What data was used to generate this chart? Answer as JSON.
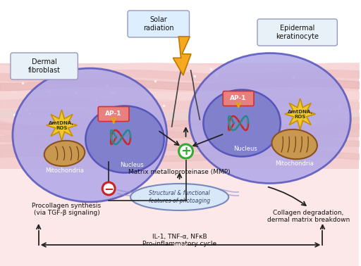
{
  "bg_color": "#ffffff",
  "cell_fill": "#b0a8e8",
  "cell_edge": "#5555bb",
  "nucleus_fill": "#8080cc",
  "nucleus_edge": "#5555bb",
  "skin_base": "#f2c8c8",
  "skin_stripe": "#e8aaaa",
  "skin_light": "#fae0e0",
  "star_fill": "#f0c830",
  "star_edge": "#c89000",
  "mito_fill": "#c89850",
  "mito_edge": "#8a5020",
  "ap1_fill": "#e88080",
  "ap1_edge": "#cc3333",
  "label_box_fill": "#e8f0f8",
  "label_box_edge": "#9999bb",
  "solar_box_fill": "#ddeeff",
  "solar_box_edge": "#9999bb",
  "struct_fill": "#d8e8f8",
  "struct_edge": "#7788bb",
  "arrow_color": "#222222",
  "green_color": "#33aa33",
  "red_color": "#cc2222",
  "dna_red": "#cc2222",
  "dna_teal": "#228888",
  "title_left": "Dermal\nfibroblast",
  "title_right": "Epidermal\nkeratinocyte",
  "label_solar": "Solar\nradiation",
  "label_nucleus": "Nucleus",
  "label_mito": "Mitochondria",
  "label_delta": "ΔmtDNA,\nROS",
  "label_mmp": "Matrix metalloproteinase (MMP)",
  "label_procollagen": "Procollagen synthesis\n(via TGF-β signaling)",
  "label_collagen": "Collagen degradation,\ndermal matrix breakdown",
  "label_structural": "Structural & functional\nfeatures of photoaging",
  "label_inflammatory": "IL-1, TNF-α, NFκB\nPro-inflammatory cycle"
}
